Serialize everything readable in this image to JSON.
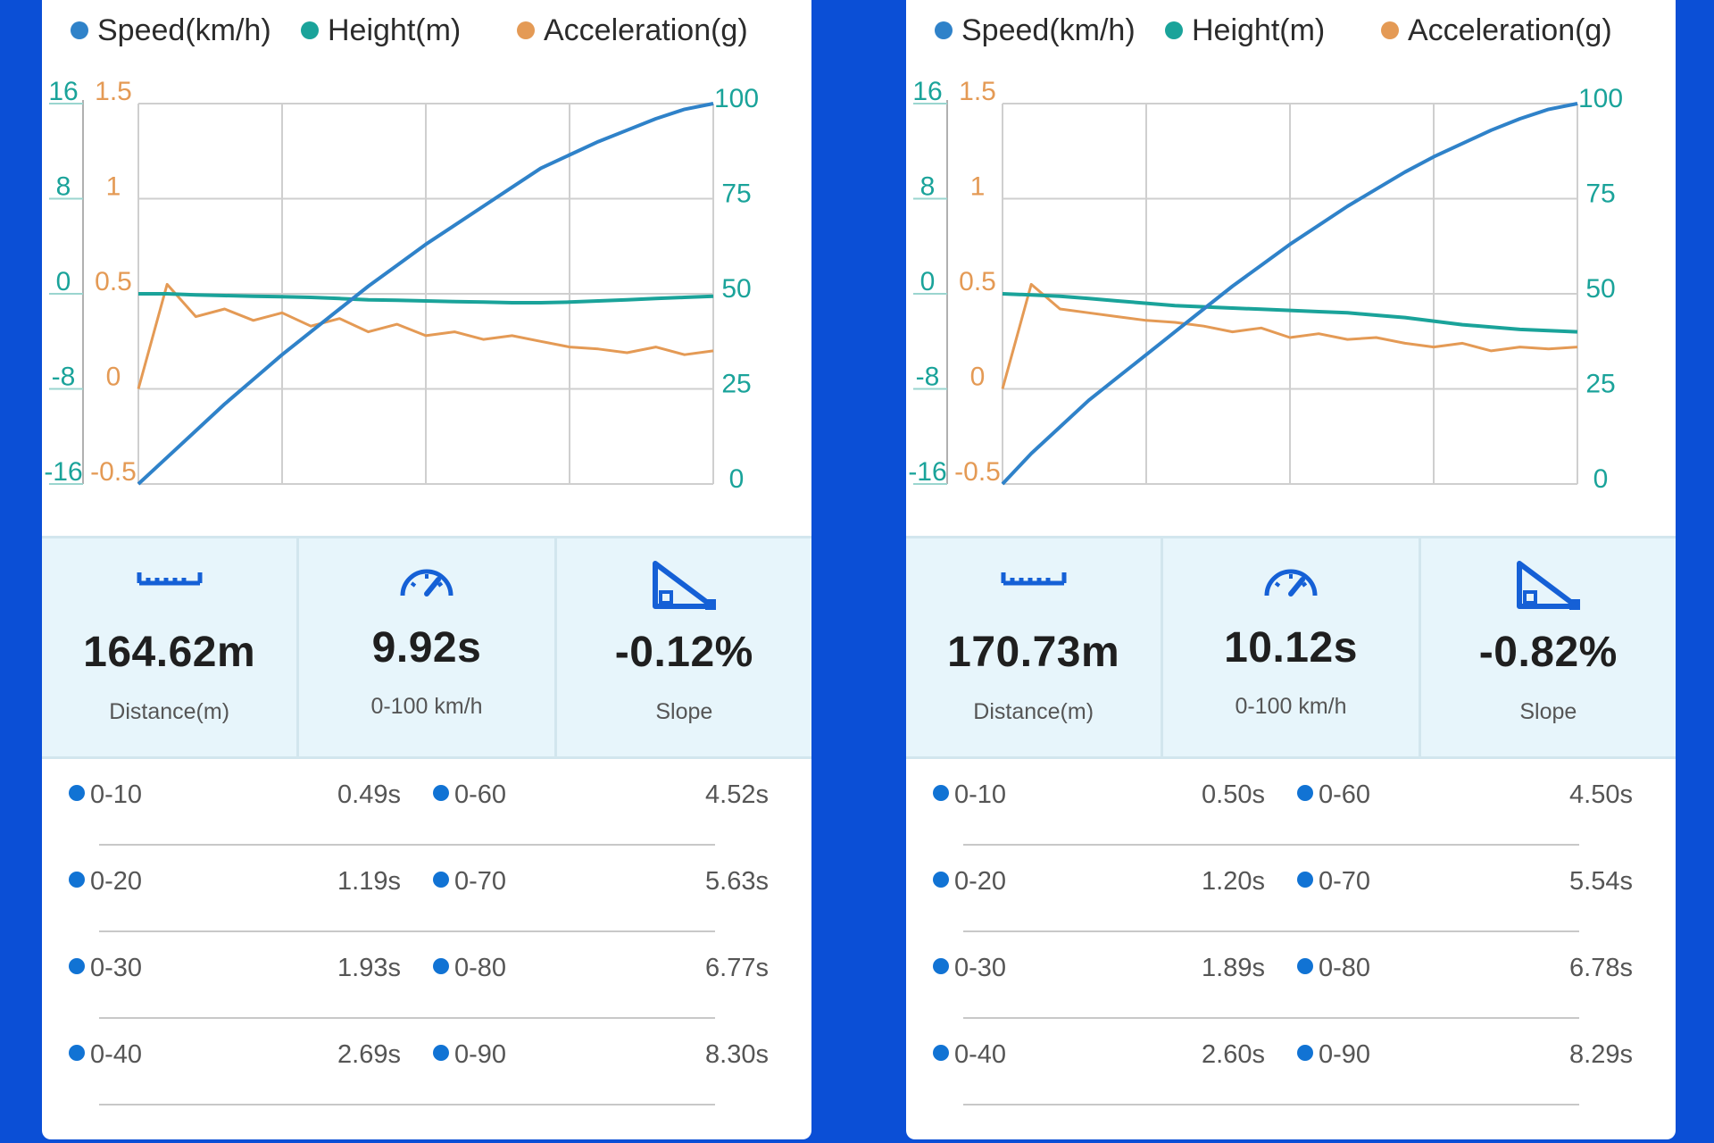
{
  "legend": {
    "speed": "Speed(km/h)",
    "height": "Height(m)",
    "acceleration": "Acceleration(g)"
  },
  "colors": {
    "background": "#0b4fd6",
    "speed": "#2f82c9",
    "height": "#1aa39a",
    "acceleration": "#e49a55",
    "accent_icon": "#1560d6",
    "stats_bg": "#e7f5fb"
  },
  "axis_ticks": {
    "height": [
      "16",
      "8",
      "0",
      "-8",
      "-16"
    ],
    "acceleration": [
      "1.5",
      "1",
      "0.5",
      "0",
      "-0.5"
    ],
    "speed": [
      "100",
      "75",
      "50",
      "25",
      "0"
    ]
  },
  "panels": [
    {
      "chart_data": {
        "type": "line",
        "x": [
          0,
          0.05,
          0.1,
          0.15,
          0.2,
          0.25,
          0.3,
          0.35,
          0.4,
          0.45,
          0.5,
          0.55,
          0.6,
          0.65,
          0.7,
          0.75,
          0.8,
          0.85,
          0.9,
          0.95,
          1.0
        ],
        "series": [
          {
            "name": "Speed(km/h)",
            "axis": "speed",
            "values": [
              0,
              7,
              14,
              21,
              27.5,
              34,
              40,
              46,
              52,
              57.5,
              63,
              68,
              73,
              78,
              83,
              86.5,
              90,
              93,
              96,
              98.5,
              100
            ]
          },
          {
            "name": "Height(m)",
            "axis": "height",
            "values": [
              0,
              0,
              -0.1,
              -0.15,
              -0.2,
              -0.25,
              -0.3,
              -0.4,
              -0.5,
              -0.55,
              -0.6,
              -0.65,
              -0.7,
              -0.75,
              -0.75,
              -0.7,
              -0.6,
              -0.5,
              -0.4,
              -0.3,
              -0.2
            ]
          },
          {
            "name": "Acceleration(g)",
            "axis": "acceleration",
            "values": [
              0.0,
              0.55,
              0.38,
              0.42,
              0.36,
              0.4,
              0.33,
              0.37,
              0.3,
              0.34,
              0.28,
              0.3,
              0.26,
              0.28,
              0.25,
              0.22,
              0.21,
              0.19,
              0.22,
              0.18,
              0.2
            ]
          }
        ],
        "ylim_height": [
          -16,
          16
        ],
        "ylim_acceleration": [
          -0.5,
          1.5
        ],
        "ylim_speed": [
          0,
          100
        ],
        "grid": true,
        "legend_position": "top"
      },
      "stats": {
        "distance_value": "164.62m",
        "distance_label": "Distance(m)",
        "time_value": "9.92s",
        "time_label": "0-100 km/h",
        "slope_value": "-0.12%",
        "slope_label": "Slope"
      },
      "splits": [
        {
          "a": "0-10",
          "a_time": "0.49s",
          "b": "0-60",
          "b_time": "4.52s"
        },
        {
          "a": "0-20",
          "a_time": "1.19s",
          "b": "0-70",
          "b_time": "5.63s"
        },
        {
          "a": "0-30",
          "a_time": "1.93s",
          "b": "0-80",
          "b_time": "6.77s"
        },
        {
          "a": "0-40",
          "a_time": "2.69s",
          "b": "0-90",
          "b_time": "8.30s"
        }
      ]
    },
    {
      "chart_data": {
        "type": "line",
        "x": [
          0,
          0.05,
          0.1,
          0.15,
          0.2,
          0.25,
          0.3,
          0.35,
          0.4,
          0.45,
          0.5,
          0.55,
          0.6,
          0.65,
          0.7,
          0.75,
          0.8,
          0.85,
          0.9,
          0.95,
          1.0
        ],
        "series": [
          {
            "name": "Speed(km/h)",
            "axis": "speed",
            "values": [
              0,
              8,
              15,
              22,
              28,
              34,
              40,
              46,
              52,
              57.5,
              63,
              68,
              73,
              77.5,
              82,
              86,
              89.5,
              93,
              96,
              98.5,
              100
            ]
          },
          {
            "name": "Height(m)",
            "axis": "height",
            "values": [
              0,
              -0.1,
              -0.2,
              -0.4,
              -0.6,
              -0.8,
              -1.0,
              -1.1,
              -1.2,
              -1.3,
              -1.4,
              -1.5,
              -1.6,
              -1.8,
              -2.0,
              -2.3,
              -2.6,
              -2.8,
              -3.0,
              -3.1,
              -3.2
            ]
          },
          {
            "name": "Acceleration(g)",
            "axis": "acceleration",
            "values": [
              0.0,
              0.55,
              0.42,
              0.4,
              0.38,
              0.36,
              0.35,
              0.33,
              0.3,
              0.32,
              0.27,
              0.29,
              0.26,
              0.27,
              0.24,
              0.22,
              0.24,
              0.2,
              0.22,
              0.21,
              0.22
            ]
          }
        ],
        "ylim_height": [
          -16,
          16
        ],
        "ylim_acceleration": [
          -0.5,
          1.5
        ],
        "ylim_speed": [
          0,
          100
        ],
        "grid": true,
        "legend_position": "top"
      },
      "stats": {
        "distance_value": "170.73m",
        "distance_label": "Distance(m)",
        "time_value": "10.12s",
        "time_label": "0-100 km/h",
        "slope_value": "-0.82%",
        "slope_label": "Slope"
      },
      "splits": [
        {
          "a": "0-10",
          "a_time": "0.50s",
          "b": "0-60",
          "b_time": "4.50s"
        },
        {
          "a": "0-20",
          "a_time": "1.20s",
          "b": "0-70",
          "b_time": "5.54s"
        },
        {
          "a": "0-30",
          "a_time": "1.89s",
          "b": "0-80",
          "b_time": "6.78s"
        },
        {
          "a": "0-40",
          "a_time": "2.60s",
          "b": "0-90",
          "b_time": "8.29s"
        }
      ]
    }
  ]
}
